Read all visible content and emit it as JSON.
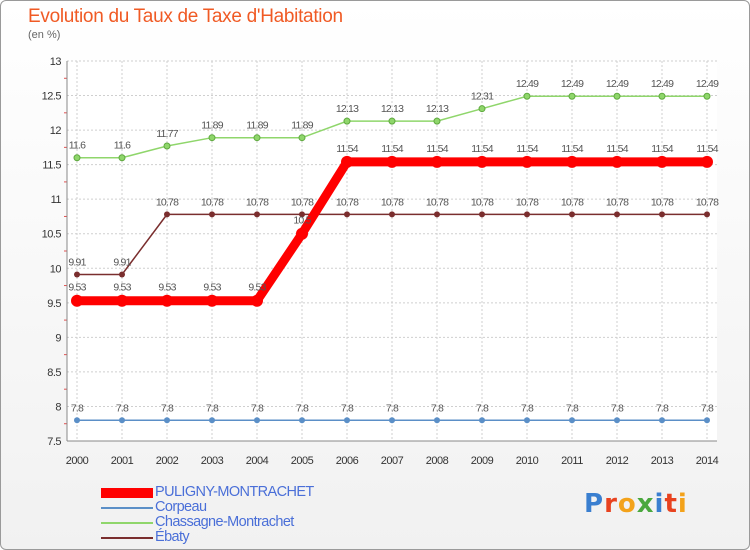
{
  "title": "Evolution du Taux de Taxe d'Habitation",
  "subtitle": "(en %)",
  "logo": "Proxiti",
  "chart_data": {
    "type": "line",
    "title": "Evolution du Taux de Taxe d'Habitation",
    "ylabel": "(en %)",
    "xlabel": "",
    "categories": [
      "2000",
      "2001",
      "2002",
      "2003",
      "2004",
      "2005",
      "2006",
      "2007",
      "2008",
      "2009",
      "2010",
      "2011",
      "2012",
      "2013",
      "2014"
    ],
    "ylim": [
      7.5,
      13
    ],
    "yticks": [
      "7.5",
      "8",
      "8.5",
      "9",
      "9.5",
      "10",
      "10.5",
      "11",
      "11.5",
      "12",
      "12.5",
      "13"
    ],
    "grid": true,
    "legend_position": "bottom-left",
    "series": [
      {
        "name": "PULIGNY-MONTRACHET",
        "color": "#ff0000",
        "values": [
          9.53,
          9.53,
          9.53,
          9.53,
          9.53,
          10.5,
          11.54,
          11.54,
          11.54,
          11.54,
          11.54,
          11.54,
          11.54,
          11.54,
          11.54
        ],
        "labels": [
          "9.53",
          "9.53",
          "9.53",
          "9.53",
          "9.53",
          "10.5",
          "11.54",
          "11.54",
          "11.54",
          "11.54",
          "11.54",
          "11.54",
          "11.54",
          "11.54",
          "11.54"
        ]
      },
      {
        "name": "Corpeau",
        "color": "#5b8fc7",
        "values": [
          7.8,
          7.8,
          7.8,
          7.8,
          7.8,
          7.8,
          7.8,
          7.8,
          7.8,
          7.8,
          7.8,
          7.8,
          7.8,
          7.8,
          7.8
        ],
        "labels": [
          "7.8",
          "7.8",
          "7.8",
          "7.8",
          "7.8",
          "7.8",
          "7.8",
          "7.8",
          "7.8",
          "7.8",
          "7.8",
          "7.8",
          "7.8",
          "7.8",
          "7.8"
        ]
      },
      {
        "name": "Chassagne-Montrachet",
        "color": "#8fd66b",
        "values": [
          11.6,
          11.6,
          11.77,
          11.89,
          11.89,
          11.89,
          12.13,
          12.13,
          12.13,
          12.31,
          12.49,
          12.49,
          12.49,
          12.49,
          12.49
        ],
        "labels": [
          "11.6",
          "11.6",
          "11.77",
          "11.89",
          "11.89",
          "11.89",
          "12.13",
          "12.13",
          "12.13",
          "12.31",
          "12.49",
          "12.49",
          "12.49",
          "12.49",
          "12.49"
        ]
      },
      {
        "name": "Ébaty",
        "color": "#7a2e2e",
        "values": [
          9.91,
          9.91,
          10.78,
          10.78,
          10.78,
          10.78,
          10.78,
          10.78,
          10.78,
          10.78,
          10.78,
          10.78,
          10.78,
          10.78,
          10.78
        ],
        "labels": [
          "9.91",
          "9.91",
          "10.78",
          "10.78",
          "10.78",
          "10.78",
          "10.78",
          "10.78",
          "10.78",
          "10.78",
          "10.78",
          "10.78",
          "10.78",
          "10.78",
          "10.78"
        ]
      }
    ]
  }
}
